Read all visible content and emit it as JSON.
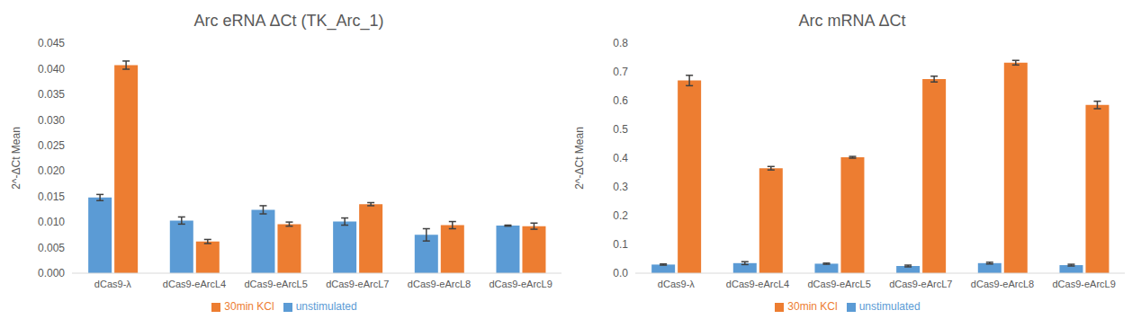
{
  "chart_data": [
    {
      "type": "bar",
      "title": "Arc eRNA ΔCt (TK_Arc_1)",
      "y_label": "2^-ΔCt Mean",
      "categories": [
        "dCas9-λ",
        "dCas9-eArcL4",
        "dCas9-eArcL5",
        "dCas9-eArcL7",
        "dCas9-eArcL8",
        "dCas9-eArcL9"
      ],
      "series": [
        {
          "name": "unstimulated",
          "color": "#5b9bd5",
          "values": [
            0.0148,
            0.0103,
            0.0124,
            0.0101,
            0.0075,
            0.0093
          ],
          "errors": [
            0.0006,
            0.0007,
            0.0008,
            0.0007,
            0.0012,
            0.0001
          ]
        },
        {
          "name": "30min KCl",
          "color": "#ed7d31",
          "values": [
            0.0407,
            0.0062,
            0.0096,
            0.0135,
            0.0094,
            0.0092
          ],
          "errors": [
            0.0008,
            0.0004,
            0.0004,
            0.0003,
            0.0007,
            0.0006
          ]
        }
      ],
      "ylim": [
        0,
        0.045
      ],
      "yticks": [
        {
          "value": 0,
          "label": "0.000"
        },
        {
          "value": 0.005,
          "label": "0.005"
        },
        {
          "value": 0.01,
          "label": "0.010"
        },
        {
          "value": 0.015,
          "label": "0.015"
        },
        {
          "value": 0.02,
          "label": "0.020"
        },
        {
          "value": 0.025,
          "label": "0.025"
        },
        {
          "value": 0.03,
          "label": "0.030"
        },
        {
          "value": 0.035,
          "label": "0.035"
        },
        {
          "value": 0.04,
          "label": "0.040"
        },
        {
          "value": 0.045,
          "label": "0.045"
        }
      ],
      "grid": false,
      "legend": "bottom"
    },
    {
      "type": "bar",
      "title": "Arc mRNA ΔCt",
      "y_label": "2^-ΔCt Mean",
      "categories": [
        "dCas9-λ",
        "dCas9-eArcL4",
        "dCas9-eArcL5",
        "dCas9-eArcL7",
        "dCas9-eArcL8",
        "dCas9-eArcL9"
      ],
      "series": [
        {
          "name": "unstimulated",
          "color": "#5b9bd5",
          "values": [
            0.03,
            0.035,
            0.033,
            0.025,
            0.035,
            0.028
          ],
          "errors": [
            0.002,
            0.005,
            0.002,
            0.003,
            0.003,
            0.003
          ]
        },
        {
          "name": "30min KCl",
          "color": "#ed7d31",
          "values": [
            0.67,
            0.365,
            0.403,
            0.675,
            0.732,
            0.585
          ],
          "errors": [
            0.018,
            0.006,
            0.003,
            0.01,
            0.008,
            0.013
          ]
        }
      ],
      "ylim": [
        0,
        0.8
      ],
      "yticks": [
        {
          "value": 0,
          "label": "0.0"
        },
        {
          "value": 0.1,
          "label": "0.1"
        },
        {
          "value": 0.2,
          "label": "0.2"
        },
        {
          "value": 0.3,
          "label": "0.3"
        },
        {
          "value": 0.4,
          "label": "0.4"
        },
        {
          "value": 0.5,
          "label": "0.5"
        },
        {
          "value": 0.6,
          "label": "0.6"
        },
        {
          "value": 0.7,
          "label": "0.7"
        },
        {
          "value": 0.8,
          "label": "0.8"
        }
      ],
      "grid": false,
      "legend": "bottom"
    }
  ]
}
